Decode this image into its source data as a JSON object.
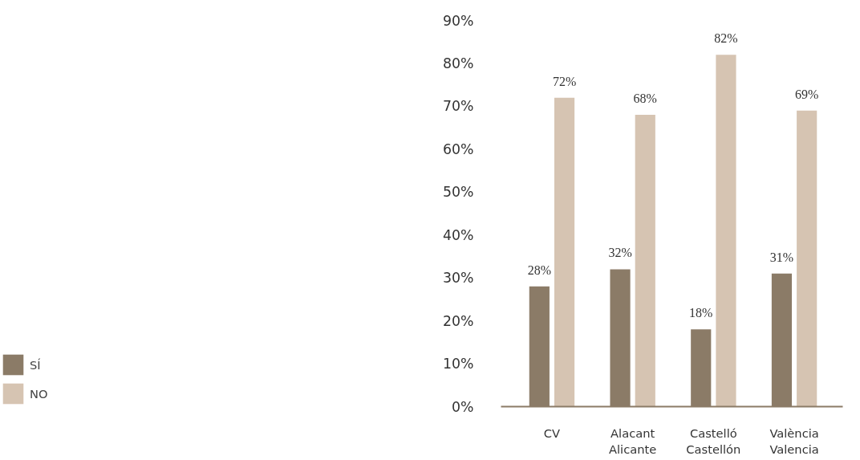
{
  "chart_data": {
    "type": "bar",
    "categories": [
      "CV",
      "Alacant\nAlicante",
      "Castelló\nCastellón",
      "València\nValencia"
    ],
    "series": [
      {
        "name": "SÍ",
        "color": "#8b7b67",
        "values": [
          28,
          32,
          18,
          31
        ],
        "value_labels": [
          "28%",
          "32%",
          "18%",
          "31%"
        ]
      },
      {
        "name": "NO",
        "color": "#d6c4b2",
        "values": [
          72,
          68,
          82,
          69
        ],
        "value_labels": [
          "72%",
          "68%",
          "82%",
          "69%"
        ]
      }
    ],
    "ylim": [
      0,
      90
    ],
    "yticks": [
      {
        "value": 0,
        "label": "0%"
      },
      {
        "value": 10,
        "label": "10%"
      },
      {
        "value": 20,
        "label": "20%"
      },
      {
        "value": 30,
        "label": "30%"
      },
      {
        "value": 40,
        "label": "40%"
      },
      {
        "value": 50,
        "label": "50%"
      },
      {
        "value": 60,
        "label": "60%"
      },
      {
        "value": 70,
        "label": "70%"
      },
      {
        "value": 80,
        "label": "80%"
      },
      {
        "value": 90,
        "label": "90%"
      }
    ],
    "grid": false,
    "legend": "bottom left"
  }
}
